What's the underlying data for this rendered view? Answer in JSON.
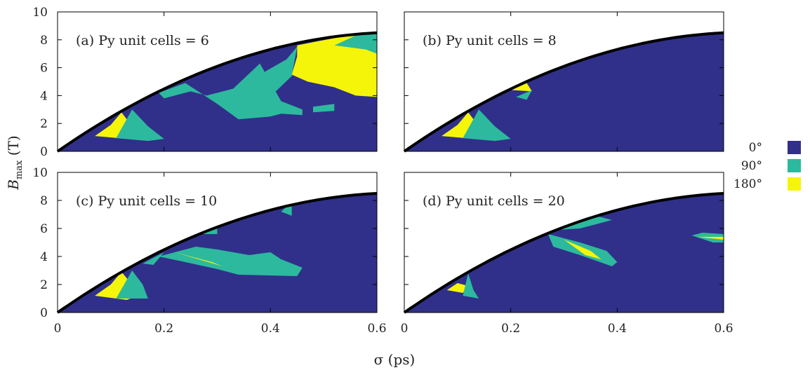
{
  "colors": {
    "deg0": "#30308a",
    "deg90": "#2db99d",
    "deg180": "#f5f50a",
    "boundary": "#000000"
  },
  "legend": {
    "items": [
      {
        "label": "0°",
        "color": "#30308a"
      },
      {
        "label": "90°",
        "color": "#2db99d"
      },
      {
        "label": "180°",
        "color": "#f5f50a"
      }
    ]
  },
  "chart_data": [
    {
      "type": "heatmap",
      "title": "(a) Py unit cells = 6",
      "xlabel": "",
      "ylabel": "",
      "xlim": [
        0,
        0.6
      ],
      "ylim": [
        0,
        10
      ],
      "boundary": {
        "x": [
          0,
          0.1,
          0.2,
          0.3,
          0.4,
          0.5,
          0.6
        ],
        "y": [
          0,
          2.6,
          4.6,
          6.2,
          7.4,
          8.1,
          8.5
        ]
      },
      "regions": [
        {
          "state": "180°",
          "points": [
            [
              0.07,
              1.1
            ],
            [
              0.1,
              1.9
            ],
            [
              0.12,
              2.8
            ],
            [
              0.13,
              2.3
            ],
            [
              0.12,
              1.6
            ],
            [
              0.15,
              1.1
            ],
            [
              0.18,
              1.0
            ],
            [
              0.16,
              0.8
            ]
          ]
        },
        {
          "state": "90°",
          "points": [
            [
              0.14,
              3.0
            ],
            [
              0.17,
              1.8
            ],
            [
              0.2,
              0.9
            ],
            [
              0.17,
              0.75
            ],
            [
              0.11,
              0.95
            ]
          ]
        },
        {
          "state": "90°",
          "points": [
            [
              0.19,
              4.2
            ],
            [
              0.24,
              4.9
            ],
            [
              0.3,
              3.4
            ],
            [
              0.34,
              2.3
            ],
            [
              0.4,
              2.5
            ],
            [
              0.42,
              2.7
            ],
            [
              0.46,
              2.6
            ],
            [
              0.46,
              3.0
            ],
            [
              0.42,
              3.6
            ],
            [
              0.38,
              6.3
            ],
            [
              0.33,
              4.5
            ],
            [
              0.28,
              4.0
            ],
            [
              0.25,
              4.3
            ],
            [
              0.2,
              3.8
            ]
          ]
        },
        {
          "state": "90°",
          "points": [
            [
              0.38,
              5.5
            ],
            [
              0.43,
              6.6
            ],
            [
              0.45,
              7.5
            ],
            [
              0.44,
              5.4
            ],
            [
              0.41,
              4.3
            ]
          ]
        },
        {
          "state": "90°",
          "points": [
            [
              0.48,
              3.2
            ],
            [
              0.52,
              3.4
            ],
            [
              0.52,
              2.9
            ],
            [
              0.48,
              2.8
            ]
          ]
        },
        {
          "state": "180°",
          "points": [
            [
              0.45,
              7.6
            ],
            [
              0.49,
              7.9
            ],
            [
              0.56,
              8.4
            ],
            [
              0.6,
              8.5
            ],
            [
              0.6,
              3.9
            ],
            [
              0.56,
              4.0
            ],
            [
              0.52,
              4.6
            ],
            [
              0.47,
              5.0
            ],
            [
              0.44,
              5.5
            ],
            [
              0.45,
              6.8
            ]
          ]
        },
        {
          "state": "90°",
          "points": [
            [
              0.52,
              7.6
            ],
            [
              0.56,
              8.3
            ],
            [
              0.6,
              8.5
            ],
            [
              0.6,
              7.0
            ],
            [
              0.58,
              7.3
            ]
          ]
        }
      ]
    },
    {
      "type": "heatmap",
      "title": "(b) Py unit cells = 8",
      "xlabel": "",
      "ylabel": "",
      "xlim": [
        0,
        0.6
      ],
      "ylim": [
        0,
        10
      ],
      "boundary": {
        "x": [
          0,
          0.1,
          0.2,
          0.3,
          0.4,
          0.5,
          0.6
        ],
        "y": [
          0,
          2.6,
          4.6,
          6.2,
          7.4,
          8.1,
          8.5
        ]
      },
      "regions": [
        {
          "state": "180°",
          "points": [
            [
              0.07,
              1.1
            ],
            [
              0.1,
              1.9
            ],
            [
              0.12,
              2.8
            ],
            [
              0.13,
              2.3
            ],
            [
              0.12,
              1.6
            ],
            [
              0.15,
              1.1
            ],
            [
              0.18,
              1.0
            ],
            [
              0.16,
              0.8
            ]
          ]
        },
        {
          "state": "90°",
          "points": [
            [
              0.14,
              3.0
            ],
            [
              0.17,
              1.8
            ],
            [
              0.2,
              0.9
            ],
            [
              0.17,
              0.75
            ],
            [
              0.11,
              0.95
            ]
          ]
        },
        {
          "state": "180°",
          "points": [
            [
              0.2,
              4.4
            ],
            [
              0.23,
              4.9
            ],
            [
              0.24,
              4.3
            ]
          ]
        },
        {
          "state": "90°",
          "points": [
            [
              0.21,
              3.9
            ],
            [
              0.24,
              4.4
            ],
            [
              0.23,
              3.7
            ]
          ]
        }
      ]
    },
    {
      "type": "heatmap",
      "title": "(c) Py unit cells = 10",
      "xlabel": "",
      "ylabel": "",
      "xlim": [
        0,
        0.6
      ],
      "ylim": [
        0,
        10
      ],
      "boundary": {
        "x": [
          0,
          0.1,
          0.2,
          0.3,
          0.4,
          0.5,
          0.6
        ],
        "y": [
          0,
          2.6,
          4.6,
          6.2,
          7.4,
          8.1,
          8.5
        ]
      },
      "regions": [
        {
          "state": "180°",
          "points": [
            [
              0.07,
              1.2
            ],
            [
              0.1,
              2.0
            ],
            [
              0.12,
              2.9
            ],
            [
              0.14,
              2.0
            ],
            [
              0.15,
              1.2
            ],
            [
              0.13,
              0.9
            ]
          ]
        },
        {
          "state": "90°",
          "points": [
            [
              0.14,
              3.0
            ],
            [
              0.16,
              2.0
            ],
            [
              0.17,
              1.0
            ],
            [
              0.11,
              1.0
            ]
          ]
        },
        {
          "state": "90°",
          "points": [
            [
              0.19,
              4.0
            ],
            [
              0.24,
              3.6
            ],
            [
              0.3,
              3.1
            ],
            [
              0.34,
              2.7
            ],
            [
              0.45,
              2.6
            ],
            [
              0.46,
              3.2
            ],
            [
              0.42,
              3.8
            ],
            [
              0.4,
              4.3
            ],
            [
              0.36,
              4.1
            ],
            [
              0.3,
              4.5
            ],
            [
              0.26,
              4.7
            ]
          ]
        },
        {
          "state": "180°",
          "points": [
            [
              0.22,
              4.3
            ],
            [
              0.29,
              3.6
            ],
            [
              0.31,
              3.3
            ]
          ]
        },
        {
          "state": "90°",
          "points": [
            [
              0.26,
              5.6
            ],
            [
              0.3,
              6.2
            ],
            [
              0.3,
              5.6
            ]
          ]
        },
        {
          "state": "90°",
          "points": [
            [
              0.42,
              7.2
            ],
            [
              0.44,
              7.9
            ],
            [
              0.44,
              6.9
            ]
          ]
        },
        {
          "state": "90°",
          "points": [
            [
              0.16,
              3.5
            ],
            [
              0.2,
              4.3
            ],
            [
              0.18,
              3.4
            ]
          ]
        }
      ]
    },
    {
      "type": "heatmap",
      "title": "(d) Py unit cells = 20",
      "xlabel": "",
      "ylabel": "",
      "xlim": [
        0,
        0.6
      ],
      "ylim": [
        0,
        10
      ],
      "boundary": {
        "x": [
          0,
          0.1,
          0.2,
          0.3,
          0.4,
          0.5,
          0.6
        ],
        "y": [
          0,
          2.6,
          4.6,
          6.2,
          7.4,
          8.1,
          8.5
        ]
      },
      "regions": [
        {
          "state": "180°",
          "points": [
            [
              0.08,
              1.6
            ],
            [
              0.1,
              2.1
            ],
            [
              0.12,
              1.9
            ],
            [
              0.11,
              1.4
            ]
          ]
        },
        {
          "state": "90°",
          "points": [
            [
              0.12,
              2.8
            ],
            [
              0.13,
              1.6
            ],
            [
              0.14,
              1.0
            ],
            [
              0.11,
              1.2
            ]
          ]
        },
        {
          "state": "90°",
          "points": [
            [
              0.27,
              5.6
            ],
            [
              0.33,
              5.0
            ],
            [
              0.38,
              4.4
            ],
            [
              0.4,
              3.6
            ],
            [
              0.39,
              3.3
            ],
            [
              0.33,
              4.1
            ],
            [
              0.28,
              4.7
            ]
          ]
        },
        {
          "state": "180°",
          "points": [
            [
              0.3,
              5.2
            ],
            [
              0.35,
              4.4
            ],
            [
              0.37,
              3.8
            ],
            [
              0.34,
              4.1
            ]
          ]
        },
        {
          "state": "90°",
          "points": [
            [
              0.29,
              5.9
            ],
            [
              0.36,
              6.9
            ],
            [
              0.39,
              6.6
            ],
            [
              0.33,
              6.0
            ]
          ]
        },
        {
          "state": "90°",
          "points": [
            [
              0.54,
              5.5
            ],
            [
              0.58,
              5.0
            ],
            [
              0.6,
              5.0
            ],
            [
              0.6,
              5.6
            ],
            [
              0.56,
              5.7
            ]
          ]
        },
        {
          "state": "180°",
          "points": [
            [
              0.55,
              5.4
            ],
            [
              0.6,
              5.2
            ],
            [
              0.6,
              5.4
            ]
          ]
        }
      ]
    }
  ],
  "axes": {
    "xlabel": "σ (ps)",
    "ylabel_main": "B",
    "ylabel_sub": "max",
    "ylabel_unit": " (T)",
    "xticks": [
      "0",
      "0.2",
      "0.4",
      "0.6"
    ],
    "yticks": [
      "0",
      "2",
      "4",
      "6",
      "8",
      "10"
    ]
  }
}
